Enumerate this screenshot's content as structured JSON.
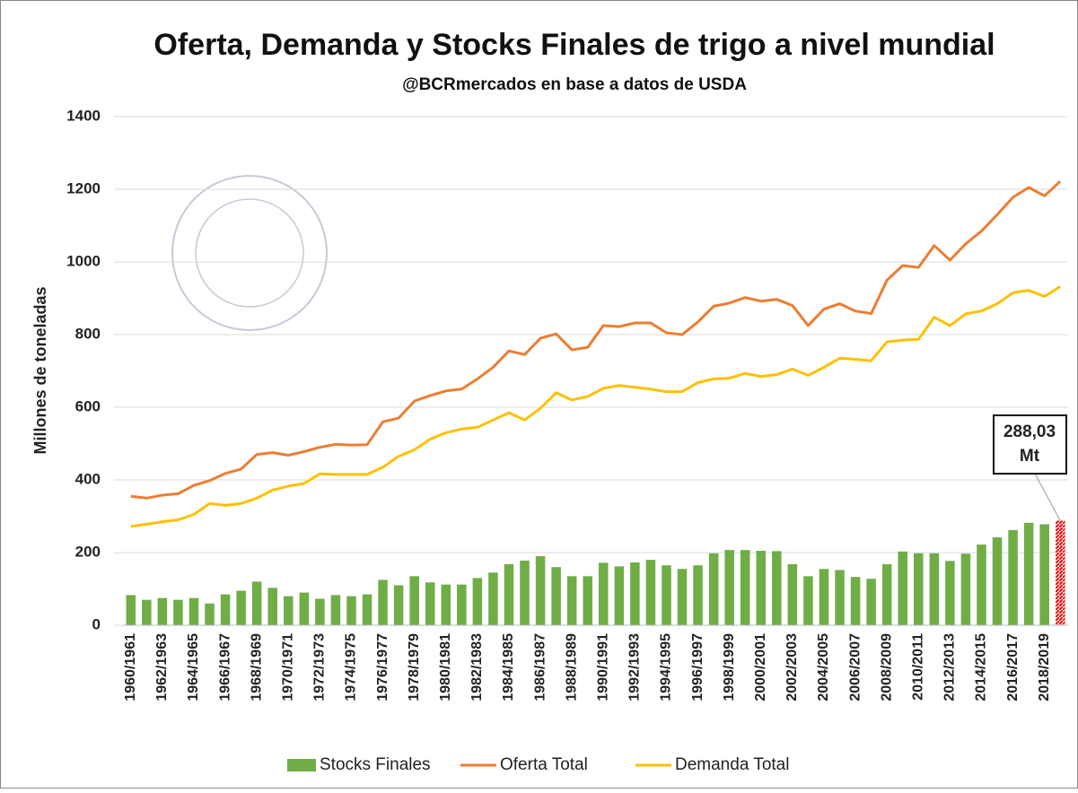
{
  "chart_data": {
    "type": "combo",
    "title": "Oferta, Demanda y Stocks Finales de trigo a nivel mundial",
    "subtitle": "@BCRmercados en base a datos de USDA",
    "y_label": "Millones de toneladas",
    "categories": [
      "1960/1961",
      null,
      "1962/1963",
      null,
      "1964/1965",
      null,
      "1966/1967",
      null,
      "1968/1969",
      null,
      "1970/1971",
      null,
      "1972/1973",
      null,
      "1974/1975",
      null,
      "1976/1977",
      null,
      "1978/1979",
      null,
      "1980/1981",
      null,
      "1982/1983",
      null,
      "1984/1985",
      null,
      "1986/1987",
      null,
      "1988/1989",
      null,
      "1990/1991",
      null,
      "1992/1993",
      null,
      "1994/1995",
      null,
      "1996/1997",
      null,
      "1998/1999",
      null,
      "2000/2001",
      null,
      "2002/2003",
      null,
      "2004/2005",
      null,
      "2006/2007",
      null,
      "2008/2009",
      null,
      "2010/2011",
      null,
      "2012/2013",
      null,
      "2014/2015",
      null,
      "2016/2017",
      null,
      "2018/2019",
      null
    ],
    "series": [
      {
        "name": "Stocks Finales",
        "type": "bar",
        "color": "#70ad47",
        "values": [
          83,
          70,
          75,
          70,
          75,
          60,
          85,
          95,
          120,
          103,
          80,
          90,
          73,
          83,
          80,
          85,
          125,
          110,
          135,
          118,
          112,
          112,
          130,
          145,
          168,
          178,
          190,
          160,
          135,
          135,
          172,
          162,
          173,
          180,
          165,
          155,
          165,
          198,
          207,
          207,
          205,
          204,
          168,
          135,
          155,
          152,
          133,
          128,
          168,
          203,
          198,
          198,
          177,
          197,
          222,
          242,
          262,
          282,
          278,
          288.03
        ]
      },
      {
        "name": "Oferta Total",
        "type": "line",
        "color": "#ed7d31",
        "values": [
          355,
          350,
          358,
          362,
          385,
          398,
          418,
          430,
          470,
          475,
          468,
          478,
          490,
          498,
          496,
          497,
          560,
          570,
          617,
          632,
          645,
          650,
          678,
          710,
          755,
          745,
          790,
          802,
          758,
          765,
          825,
          822,
          832,
          832,
          805,
          800,
          835,
          878,
          887,
          902,
          892,
          897,
          880,
          825,
          870,
          885,
          865,
          858,
          950,
          990,
          985,
          1045,
          1005,
          1050,
          1085,
          1130,
          1178,
          1205,
          1182,
          1222
        ]
      },
      {
        "name": "Demanda Total",
        "type": "line",
        "color": "#ffc000",
        "values": [
          272,
          278,
          285,
          290,
          305,
          335,
          330,
          335,
          350,
          372,
          383,
          390,
          417,
          415,
          415,
          415,
          435,
          465,
          483,
          512,
          530,
          540,
          545,
          565,
          585,
          565,
          597,
          640,
          620,
          630,
          652,
          660,
          655,
          650,
          643,
          643,
          668,
          678,
          680,
          693,
          685,
          690,
          705,
          688,
          710,
          735,
          732,
          728,
          780,
          785,
          787,
          848,
          825,
          857,
          865,
          885,
          915,
          922,
          905,
          932
        ]
      }
    ],
    "annotation": {
      "lines": [
        "288,03",
        "Mt"
      ],
      "color": "#ff0000"
    },
    "ylim": [
      0,
      1400
    ],
    "yticks": [
      0,
      200,
      400,
      600,
      800,
      1000,
      1200,
      1400
    ],
    "grid": true,
    "legend": "bottom"
  }
}
